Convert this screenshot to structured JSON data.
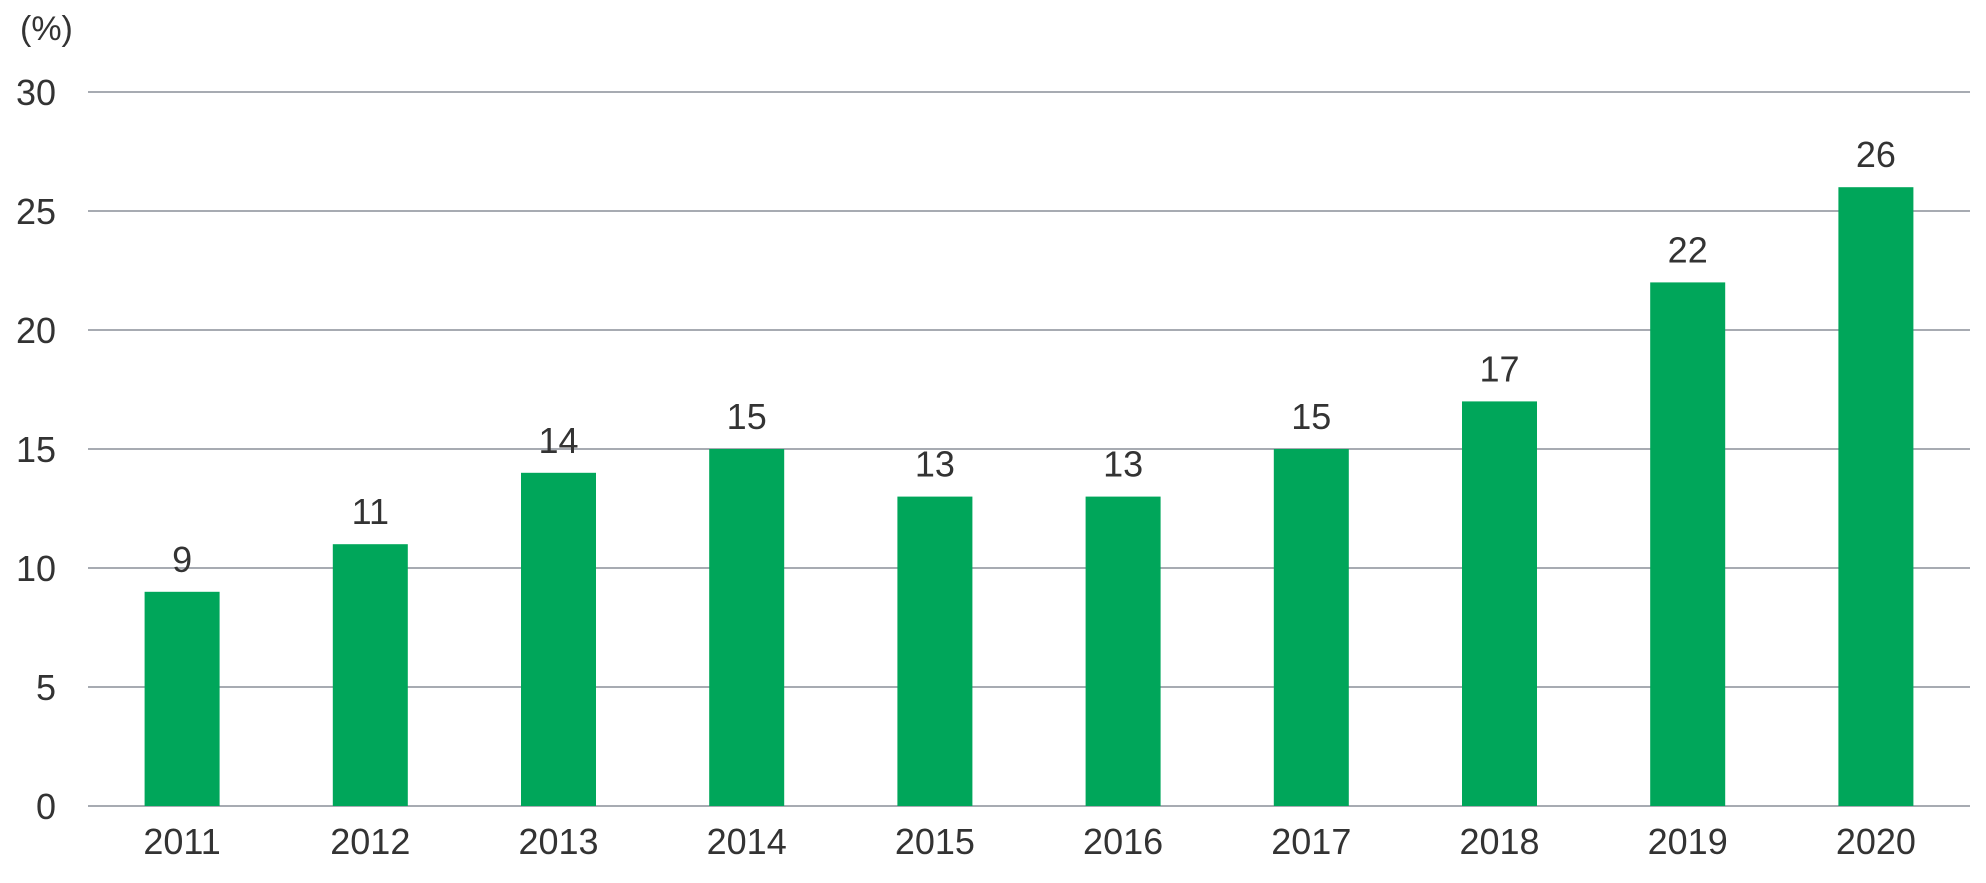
{
  "chart_data": {
    "type": "bar",
    "ylabel": "(%)",
    "categories": [
      "2011",
      "2012",
      "2013",
      "2014",
      "2015",
      "2016",
      "2017",
      "2018",
      "2019",
      "2020"
    ],
    "values": [
      9,
      11,
      14,
      15,
      13,
      13,
      15,
      17,
      22,
      26
    ],
    "data_labels": [
      "9",
      "11",
      "14",
      "15",
      "13",
      "13",
      "15",
      "17",
      "22",
      "26"
    ],
    "ylim": [
      0,
      30
    ],
    "yticks": [
      0,
      5,
      10,
      15,
      20,
      25,
      30
    ],
    "ytick_labels": [
      "0",
      "5",
      "10",
      "15",
      "20",
      "25",
      "30"
    ],
    "grid": true,
    "legend": "none",
    "bar_color": "#00A65A",
    "grid_color": "#8A8F99",
    "text_color": "#333333"
  }
}
